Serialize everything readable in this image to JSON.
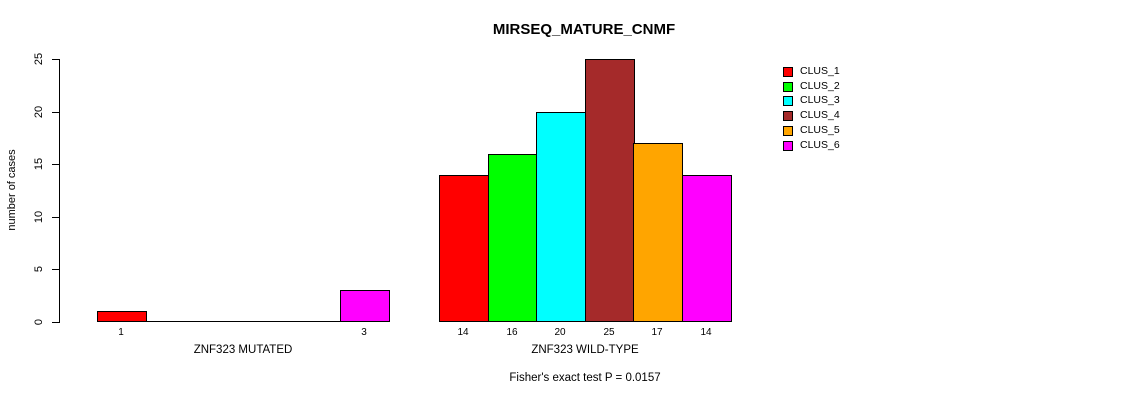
{
  "chart_data": {
    "type": "bar",
    "title": "MIRSEQ_MATURE_CNMF",
    "ylabel": "number of cases",
    "xlabel": "",
    "ylim": [
      0,
      25
    ],
    "yticks": [
      0,
      5,
      10,
      15,
      20,
      25
    ],
    "grid": false,
    "legend_position": "right",
    "groups": [
      {
        "label": "ZNF323 MUTATED"
      },
      {
        "label": "ZNF323 WILD-TYPE"
      }
    ],
    "series": [
      {
        "name": "CLUS_1",
        "color": "#FF0000",
        "values": [
          1,
          14
        ]
      },
      {
        "name": "CLUS_2",
        "color": "#00FF00",
        "values": [
          0,
          16
        ]
      },
      {
        "name": "CLUS_3",
        "color": "#00FFFF",
        "values": [
          0,
          20
        ]
      },
      {
        "name": "CLUS_4",
        "color": "#A52A2A",
        "values": [
          0,
          25
        ]
      },
      {
        "name": "CLUS_5",
        "color": "#FFA500",
        "values": [
          0,
          17
        ]
      },
      {
        "name": "CLUS_6",
        "color": "#FF00FF",
        "values": [
          3,
          14
        ]
      }
    ],
    "bar_value_labels": {
      "ZNF323 MUTATED": [
        1,
        null,
        null,
        null,
        null,
        3
      ],
      "ZNF323 WILD-TYPE": [
        14,
        16,
        20,
        25,
        17,
        14
      ]
    },
    "annotation": "Fisher's exact test P = 0.0157",
    "colors": {
      "axis": "#000000",
      "text": "#000000",
      "background": "#FFFFFF"
    }
  }
}
